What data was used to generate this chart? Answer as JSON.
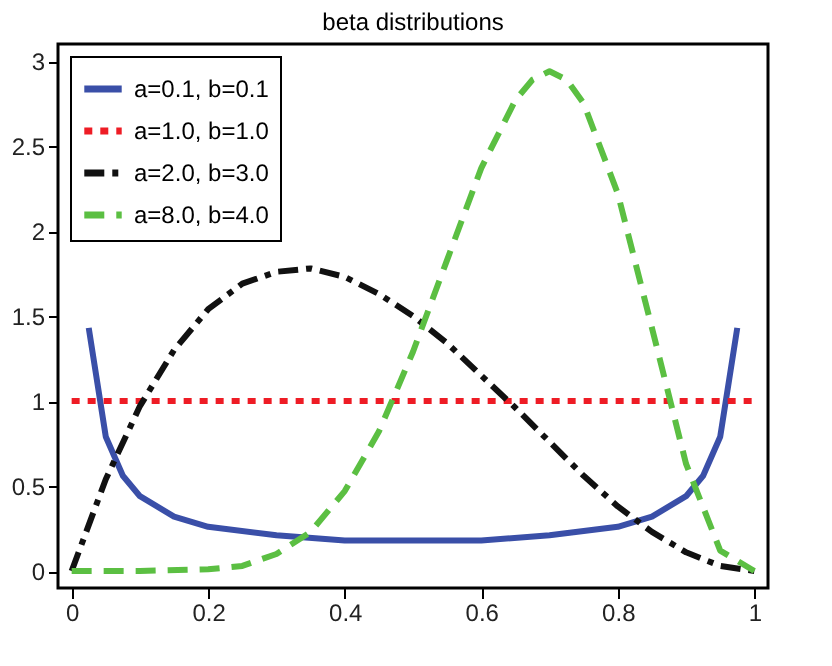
{
  "chart_data": {
    "type": "line",
    "title": "beta distributions",
    "xlim": [
      -0.02,
      1.02
    ],
    "ylim": [
      -0.1,
      3.1
    ],
    "xticks": [
      0,
      0.2,
      0.4,
      0.6,
      0.8,
      1
    ],
    "yticks": [
      0,
      0.5,
      1,
      1.5,
      2,
      2.5,
      3
    ],
    "grid": false,
    "legend": "top left",
    "marker": "none",
    "series": [
      {
        "name": "a=0.1, b=0.1",
        "color": "#3a4fa8",
        "line_style": "solid",
        "x": [
          0.025,
          0.05,
          0.075,
          0.1,
          0.15,
          0.2,
          0.3,
          0.4,
          0.5,
          0.6,
          0.7,
          0.8,
          0.85,
          0.9,
          0.925,
          0.95,
          0.975
        ],
        "values": [
          1.43,
          0.79,
          0.56,
          0.44,
          0.32,
          0.26,
          0.21,
          0.18,
          0.18,
          0.18,
          0.21,
          0.26,
          0.32,
          0.44,
          0.56,
          0.79,
          1.43
        ]
      },
      {
        "name": "a=1.0, b=1.0",
        "color": "#ee1c25",
        "line_style": "dotted",
        "x": [
          0,
          1
        ],
        "values": [
          1,
          1
        ]
      },
      {
        "name": "a=2.0, b=3.0",
        "color": "#111111",
        "line_style": "dashdot",
        "x": [
          0,
          0.05,
          0.1,
          0.15,
          0.2,
          0.25,
          0.3,
          0.35,
          0.4,
          0.45,
          0.5,
          0.55,
          0.6,
          0.65,
          0.7,
          0.75,
          0.8,
          0.85,
          0.9,
          0.95,
          1
        ],
        "values": [
          0,
          0.54,
          0.97,
          1.3,
          1.54,
          1.69,
          1.76,
          1.78,
          1.73,
          1.63,
          1.5,
          1.34,
          1.15,
          0.96,
          0.76,
          0.56,
          0.38,
          0.23,
          0.11,
          0.03,
          0
        ]
      },
      {
        "name": "a=8.0, b=4.0",
        "color": "#5bbf42",
        "line_style": "dashed",
        "x": [
          0,
          0.1,
          0.2,
          0.25,
          0.3,
          0.35,
          0.4,
          0.45,
          0.5,
          0.55,
          0.6,
          0.65,
          0.675,
          0.7,
          0.725,
          0.75,
          0.8,
          0.85,
          0.9,
          0.95,
          1
        ],
        "values": [
          0,
          0,
          0.01,
          0.03,
          0.1,
          0.23,
          0.47,
          0.82,
          1.29,
          1.83,
          2.37,
          2.77,
          2.89,
          2.94,
          2.89,
          2.75,
          2.22,
          1.43,
          0.63,
          0.12,
          0
        ]
      }
    ]
  }
}
